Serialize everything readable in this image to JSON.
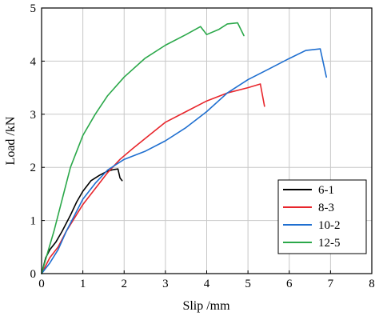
{
  "chart_data": {
    "type": "line",
    "title": "",
    "xlabel": "Slip /mm",
    "ylabel": "Load /kN",
    "xlim": [
      0,
      8
    ],
    "ylim": [
      0,
      5
    ],
    "xticks": [
      "0",
      "1",
      "2",
      "3",
      "4",
      "5",
      "6",
      "7",
      "8"
    ],
    "yticks": [
      "0",
      "1",
      "2",
      "3",
      "4",
      "5"
    ],
    "grid": true,
    "legend_position": "lower-right",
    "series": [
      {
        "name": "6-1",
        "color": "#000000",
        "x": [
          0,
          0.1,
          0.2,
          0.35,
          0.5,
          0.7,
          0.85,
          1.0,
          1.2,
          1.4,
          1.6,
          1.75,
          1.85,
          1.9,
          1.95
        ],
        "y": [
          0,
          0.3,
          0.45,
          0.6,
          0.8,
          1.1,
          1.35,
          1.55,
          1.75,
          1.85,
          1.93,
          1.96,
          1.97,
          1.8,
          1.75
        ]
      },
      {
        "name": "8-3",
        "color": "#e8262c",
        "x": [
          0,
          0.2,
          0.4,
          0.6,
          0.8,
          1.0,
          1.3,
          1.6,
          1.9,
          2.2,
          2.6,
          3.0,
          3.5,
          4.0,
          4.5,
          5.0,
          5.3,
          5.4
        ],
        "y": [
          0,
          0.3,
          0.5,
          0.8,
          1.05,
          1.3,
          1.6,
          1.9,
          2.15,
          2.35,
          2.6,
          2.85,
          3.05,
          3.25,
          3.4,
          3.5,
          3.57,
          3.15
        ]
      },
      {
        "name": "10-2",
        "color": "#1f6fd0",
        "x": [
          0,
          0.2,
          0.4,
          0.6,
          0.8,
          1.0,
          1.3,
          1.6,
          2.0,
          2.5,
          3.0,
          3.5,
          4.0,
          4.5,
          5.0,
          5.5,
          6.0,
          6.4,
          6.75,
          6.9
        ],
        "y": [
          0,
          0.2,
          0.45,
          0.8,
          1.1,
          1.4,
          1.7,
          1.95,
          2.15,
          2.3,
          2.5,
          2.75,
          3.05,
          3.4,
          3.65,
          3.85,
          4.05,
          4.2,
          4.23,
          3.7
        ]
      },
      {
        "name": "12-5",
        "color": "#2ba84a",
        "x": [
          0,
          0.15,
          0.3,
          0.5,
          0.7,
          1.0,
          1.3,
          1.6,
          2.0,
          2.5,
          3.0,
          3.5,
          3.85,
          4.0,
          4.3,
          4.5,
          4.75,
          4.9
        ],
        "y": [
          0,
          0.4,
          0.8,
          1.4,
          2.0,
          2.6,
          3.0,
          3.35,
          3.7,
          4.05,
          4.3,
          4.5,
          4.65,
          4.5,
          4.6,
          4.7,
          4.72,
          4.48
        ]
      }
    ]
  }
}
